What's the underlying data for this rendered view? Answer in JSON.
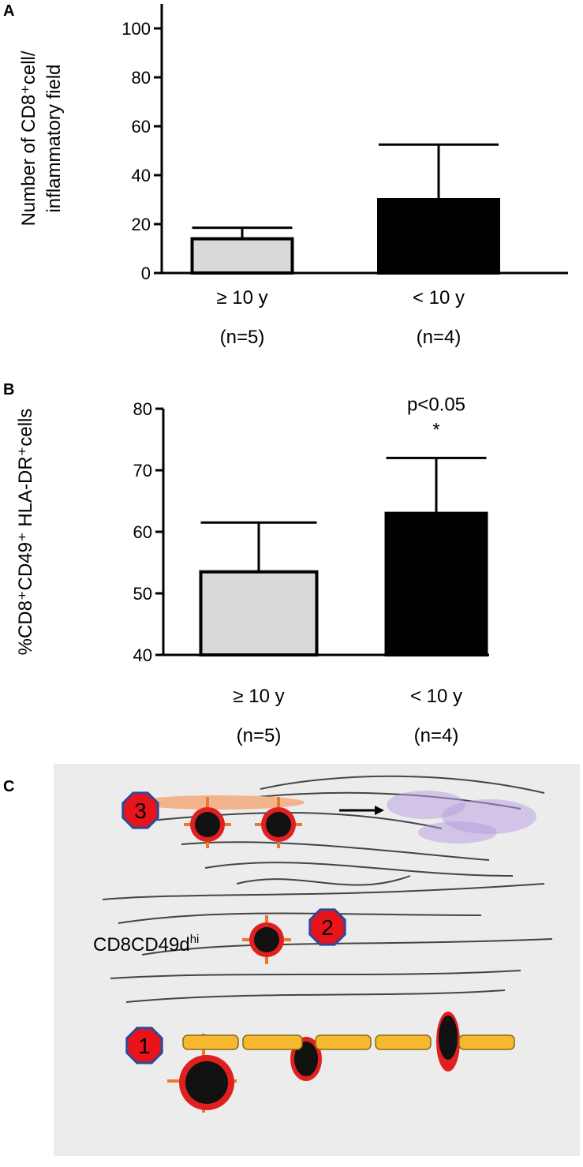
{
  "chart_data": [
    {
      "type": "bar",
      "panel": "A",
      "ylabel": [
        "Number of CD8⁺cell/",
        "inflammatory field"
      ],
      "categories": [
        "≥ 10 y",
        "< 10 y"
      ],
      "category_notes": [
        "(n=5)",
        "(n=4)"
      ],
      "values": [
        14,
        30
      ],
      "errors": [
        4.5,
        22.5
      ],
      "colors": [
        "#d9d9d9",
        "#000000"
      ],
      "ylim": [
        0,
        110
      ],
      "yticks": [
        0,
        20,
        40,
        60,
        80,
        100
      ]
    },
    {
      "type": "bar",
      "panel": "B",
      "ylabel": [
        "%CD8⁺CD49⁺ HLA-DR⁺cells"
      ],
      "categories": [
        "≥ 10 y",
        "< 10 y"
      ],
      "category_notes": [
        "(n=5)",
        "(n=4)"
      ],
      "values": [
        53.5,
        63
      ],
      "errors": [
        8,
        9
      ],
      "colors": [
        "#d9d9d9",
        "#000000"
      ],
      "ylim": [
        40,
        80
      ],
      "yticks": [
        40,
        50,
        60,
        70,
        80
      ],
      "annotation": [
        "p<0.05",
        "*"
      ]
    }
  ],
  "illustration": {
    "panel": "C",
    "cell_label": "CD8CD49d",
    "cell_label_sup": "hi",
    "markers": [
      "3",
      "2",
      "1"
    ]
  }
}
